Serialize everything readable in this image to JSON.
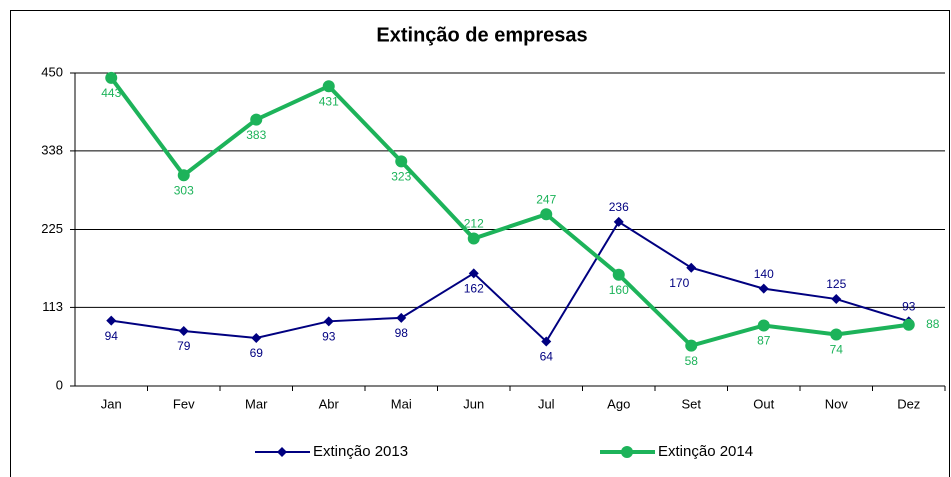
{
  "chart_data": {
    "type": "line",
    "title": "Extinção de empresas",
    "categories": [
      "Jan",
      "Fev",
      "Mar",
      "Abr",
      "Mai",
      "Jun",
      "Jul",
      "Ago",
      "Set",
      "Out",
      "Nov",
      "Dez"
    ],
    "series": [
      {
        "name": "Extinção 2013",
        "color": "#000080",
        "marker": "diamond",
        "values": [
          94,
          79,
          69,
          93,
          98,
          162,
          64,
          236,
          170,
          140,
          125,
          93
        ]
      },
      {
        "name": "Extinção 2014",
        "color": "#1db35a",
        "marker": "circle",
        "values": [
          443,
          303,
          383,
          431,
          323,
          212,
          247,
          160,
          58,
          87,
          74,
          88
        ]
      }
    ],
    "ylim": [
      0,
      450
    ],
    "yticks": [
      0,
      113,
      225,
      338,
      450
    ],
    "grid": true,
    "legend": "bottom"
  }
}
